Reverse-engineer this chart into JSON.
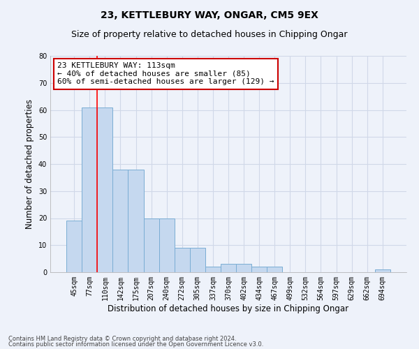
{
  "title1": "23, KETTLEBURY WAY, ONGAR, CM5 9EX",
  "title2": "Size of property relative to detached houses in Chipping Ongar",
  "xlabel": "Distribution of detached houses by size in Chipping Ongar",
  "ylabel": "Number of detached properties",
  "categories": [
    "45sqm",
    "77sqm",
    "110sqm",
    "142sqm",
    "175sqm",
    "207sqm",
    "240sqm",
    "272sqm",
    "305sqm",
    "337sqm",
    "370sqm",
    "402sqm",
    "434sqm",
    "467sqm",
    "499sqm",
    "532sqm",
    "564sqm",
    "597sqm",
    "629sqm",
    "662sqm",
    "694sqm"
  ],
  "values": [
    19,
    61,
    61,
    38,
    38,
    20,
    20,
    9,
    9,
    2,
    3,
    3,
    2,
    2,
    0,
    0,
    0,
    0,
    0,
    0,
    1
  ],
  "bar_color": "#c5d8ef",
  "bar_edge_color": "#7aadd4",
  "red_line_index": 2,
  "annotation_line1": "23 KETTLEBURY WAY: 113sqm",
  "annotation_line2": "← 40% of detached houses are smaller (85)",
  "annotation_line3": "60% of semi-detached houses are larger (129) →",
  "annotation_box_color": "white",
  "annotation_box_edge": "#cc0000",
  "ylim": [
    0,
    80
  ],
  "yticks": [
    0,
    10,
    20,
    30,
    40,
    50,
    60,
    70,
    80
  ],
  "footer1": "Contains HM Land Registry data © Crown copyright and database right 2024.",
  "footer2": "Contains public sector information licensed under the Open Government Licence v3.0.",
  "bg_color": "#eef2fa",
  "grid_color": "#d0d8e8",
  "title1_fontsize": 10,
  "title2_fontsize": 9,
  "ann_fontsize": 8,
  "tick_fontsize": 7,
  "ylabel_fontsize": 8.5,
  "xlabel_fontsize": 8.5,
  "footer_fontsize": 6
}
